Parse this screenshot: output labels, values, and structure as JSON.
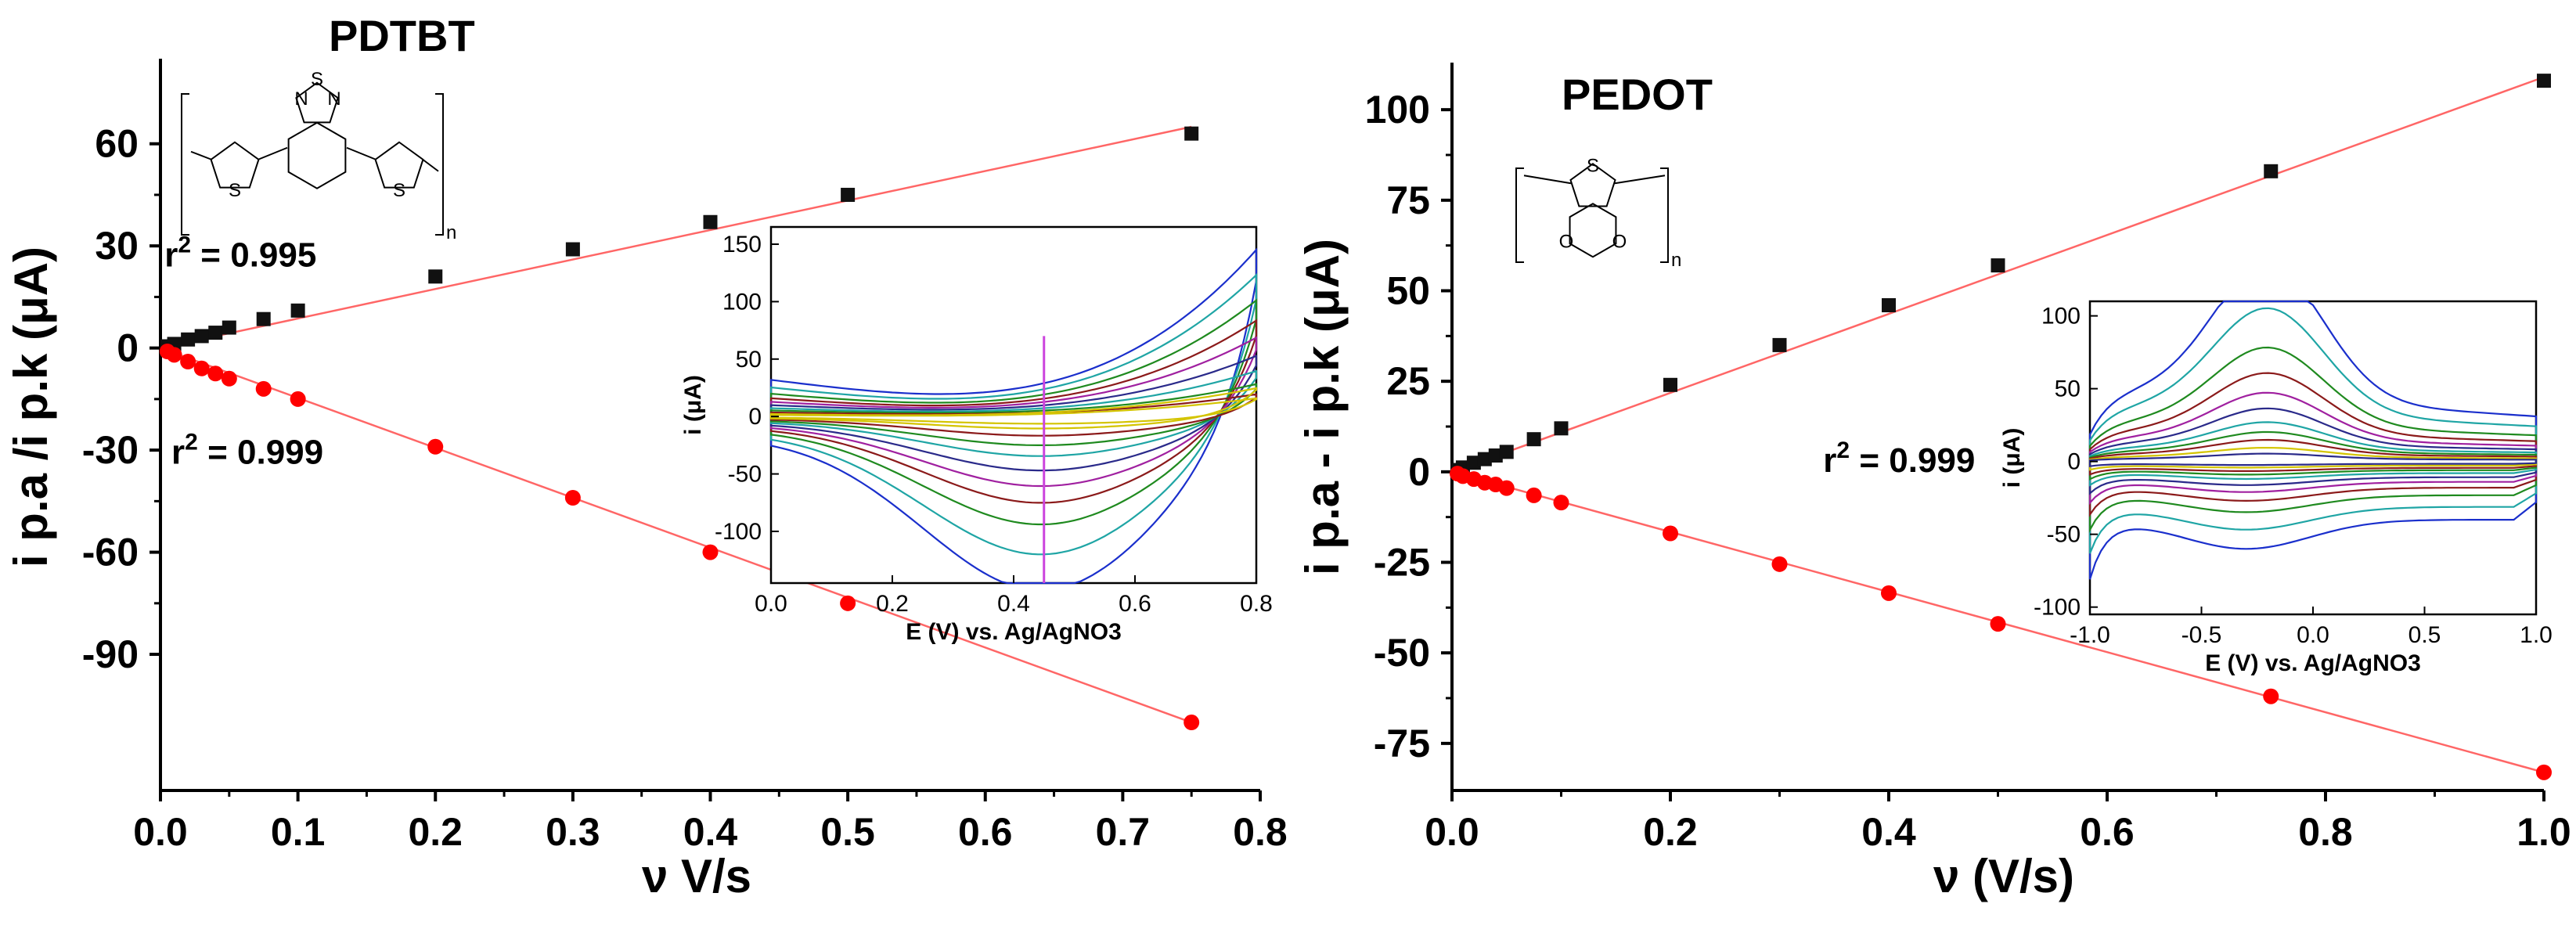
{
  "chart_data": [
    {
      "type": "scatter",
      "title": "PDTBT",
      "xlabel": "ν V/s",
      "ylabel": "i p.a /i p.k (μA)",
      "xlim": [
        0,
        0.8
      ],
      "ylim": [
        -130,
        85
      ],
      "xticks": [
        "0.0",
        "0.1",
        "0.2",
        "0.3",
        "0.4",
        "0.5",
        "0.6",
        "0.7",
        "0.8"
      ],
      "yticks": [
        "60",
        "30",
        "0",
        "-30",
        "-60",
        "-90"
      ],
      "grid": false,
      "series": [
        {
          "color": "#111111",
          "marker": "square",
          "x": [
            0.005,
            0.01,
            0.02,
            0.03,
            0.04,
            0.05,
            0.075,
            0.1,
            0.2,
            0.3,
            0.4,
            0.5,
            0.75
          ],
          "y": [
            0.5,
            1.2,
            2.5,
            3.5,
            4.5,
            6,
            8.5,
            11,
            21,
            29,
            37,
            45,
            63
          ]
        },
        {
          "color": "#ff0000",
          "marker": "circle",
          "x": [
            0.005,
            0.01,
            0.02,
            0.03,
            0.04,
            0.05,
            0.075,
            0.1,
            0.2,
            0.3,
            0.4,
            0.5,
            0.75
          ],
          "y": [
            -1,
            -2,
            -4,
            -6,
            -7.5,
            -9,
            -12,
            -15,
            -29,
            -44,
            -60,
            -75,
            -110
          ]
        }
      ],
      "fits": [
        {
          "color": "#ff6666",
          "x": [
            0,
            0.75
          ],
          "y": [
            0,
            65
          ]
        },
        {
          "color": "#ff6666",
          "x": [
            0,
            0.75
          ],
          "y": [
            0,
            -110
          ]
        }
      ],
      "annotations": [
        {
          "text_parts": [
            "r",
            "2",
            " = 0.995"
          ],
          "x": 0.003,
          "y": 24
        },
        {
          "text_parts": [
            "r",
            "2",
            " = 0.999"
          ],
          "x": 0.008,
          "y": -34
        }
      ],
      "structure": {
        "atoms": [
          "S",
          "N",
          "N",
          "S",
          "S"
        ],
        "subscript": "n"
      },
      "inset": {
        "type": "line",
        "xlabel": "E (V) vs. Ag/AgNO3",
        "ylabel": "i (μA)",
        "xlim": [
          0,
          0.8
        ],
        "ylim": [
          -145,
          165
        ],
        "xticks": [
          "0.0",
          "0.2",
          "0.4",
          "0.6",
          "0.8"
        ],
        "yticks": [
          "150",
          "100",
          "50",
          "0",
          "-50",
          "-100"
        ],
        "marker_line_x": 0.45,
        "marker_line_color": "#cc44dd",
        "series": [
          {
            "color": "#1a2fcc",
            "upper_max": 165,
            "lower_min": -145
          },
          {
            "color": "#1fa5a5",
            "upper_max": 140,
            "lower_min": -115
          },
          {
            "color": "#1f8a1f",
            "upper_max": 115,
            "lower_min": -90
          },
          {
            "color": "#8b1a1a",
            "upper_max": 95,
            "lower_min": -72
          },
          {
            "color": "#a020a0",
            "upper_max": 78,
            "lower_min": -58
          },
          {
            "color": "#2a2a8a",
            "upper_max": 60,
            "lower_min": -45
          },
          {
            "color": "#1fa5a5",
            "upper_max": 45,
            "lower_min": -33
          },
          {
            "color": "#1f8a1f",
            "upper_max": 32,
            "lower_min": -24
          },
          {
            "color": "#8b1a1a",
            "upper_max": 22,
            "lower_min": -16
          },
          {
            "color": "#d4c400",
            "upper_max": 28,
            "lower_min": -10
          },
          {
            "color": "#d4c400",
            "upper_max": 18,
            "lower_min": -6
          }
        ]
      }
    },
    {
      "type": "scatter",
      "title": "PEDOT",
      "xlabel": "ν (V/s)",
      "ylabel": "i p.a - i p.k (μA)",
      "xlim": [
        0,
        1.0
      ],
      "ylim": [
        -88,
        113
      ],
      "xticks": [
        "0.0",
        "0.2",
        "0.4",
        "0.6",
        "0.8",
        "1.0"
      ],
      "yticks": [
        "100",
        "75",
        "50",
        "25",
        "0",
        "-25",
        "-50",
        "-75"
      ],
      "grid": false,
      "series": [
        {
          "color": "#111111",
          "marker": "square",
          "x": [
            0.005,
            0.01,
            0.02,
            0.03,
            0.04,
            0.05,
            0.075,
            0.1,
            0.2,
            0.3,
            0.4,
            0.5,
            0.75,
            1.0
          ],
          "y": [
            0.5,
            1.2,
            2.5,
            3.5,
            4.5,
            5.5,
            9,
            12,
            24,
            35,
            46,
            57,
            83,
            108
          ]
        },
        {
          "color": "#ff0000",
          "marker": "circle",
          "x": [
            0.005,
            0.01,
            0.02,
            0.03,
            0.04,
            0.05,
            0.075,
            0.1,
            0.2,
            0.3,
            0.4,
            0.5,
            0.75,
            1.0
          ],
          "y": [
            -0.5,
            -1.2,
            -2,
            -3,
            -3.5,
            -4.5,
            -6.5,
            -8.5,
            -17,
            -25.5,
            -33.5,
            -42,
            -62,
            -83
          ]
        }
      ],
      "fits": [
        {
          "color": "#ff6666",
          "x": [
            0,
            1.0
          ],
          "y": [
            0,
            109
          ]
        },
        {
          "color": "#ff6666",
          "x": [
            0,
            1.0
          ],
          "y": [
            0,
            -83
          ]
        }
      ],
      "annotations": [
        {
          "text_parts": [
            "r",
            "2",
            " = 0.999"
          ],
          "x": 0.34,
          "y": 0
        }
      ],
      "structure": {
        "atoms": [
          "S",
          "O",
          "O"
        ],
        "subscript": "n"
      },
      "inset": {
        "type": "line",
        "xlabel": "E (V) vs. Ag/AgNO3",
        "ylabel": "i (μA)",
        "xlim": [
          -1.0,
          1.0
        ],
        "ylim": [
          -105,
          110
        ],
        "xticks": [
          "-1.0",
          "-0.5",
          "0.0",
          "0.5",
          "1.0"
        ],
        "yticks": [
          "100",
          "50",
          "0",
          "-50",
          "-100"
        ],
        "series": [
          {
            "color": "#1a2fcc",
            "scale": 1.0
          },
          {
            "color": "#1fa5a5",
            "scale": 0.78
          },
          {
            "color": "#1f8a1f",
            "scale": 0.58
          },
          {
            "color": "#8b1a1a",
            "scale": 0.45
          },
          {
            "color": "#a020a0",
            "scale": 0.35
          },
          {
            "color": "#2a2a8a",
            "scale": 0.27
          },
          {
            "color": "#1fa5a5",
            "scale": 0.2
          },
          {
            "color": "#1f8a1f",
            "scale": 0.15
          },
          {
            "color": "#8b1a1a",
            "scale": 0.11
          },
          {
            "color": "#d4c400",
            "scale": 0.07
          },
          {
            "color": "#2a2a8a",
            "scale": 0.04
          }
        ]
      }
    }
  ]
}
